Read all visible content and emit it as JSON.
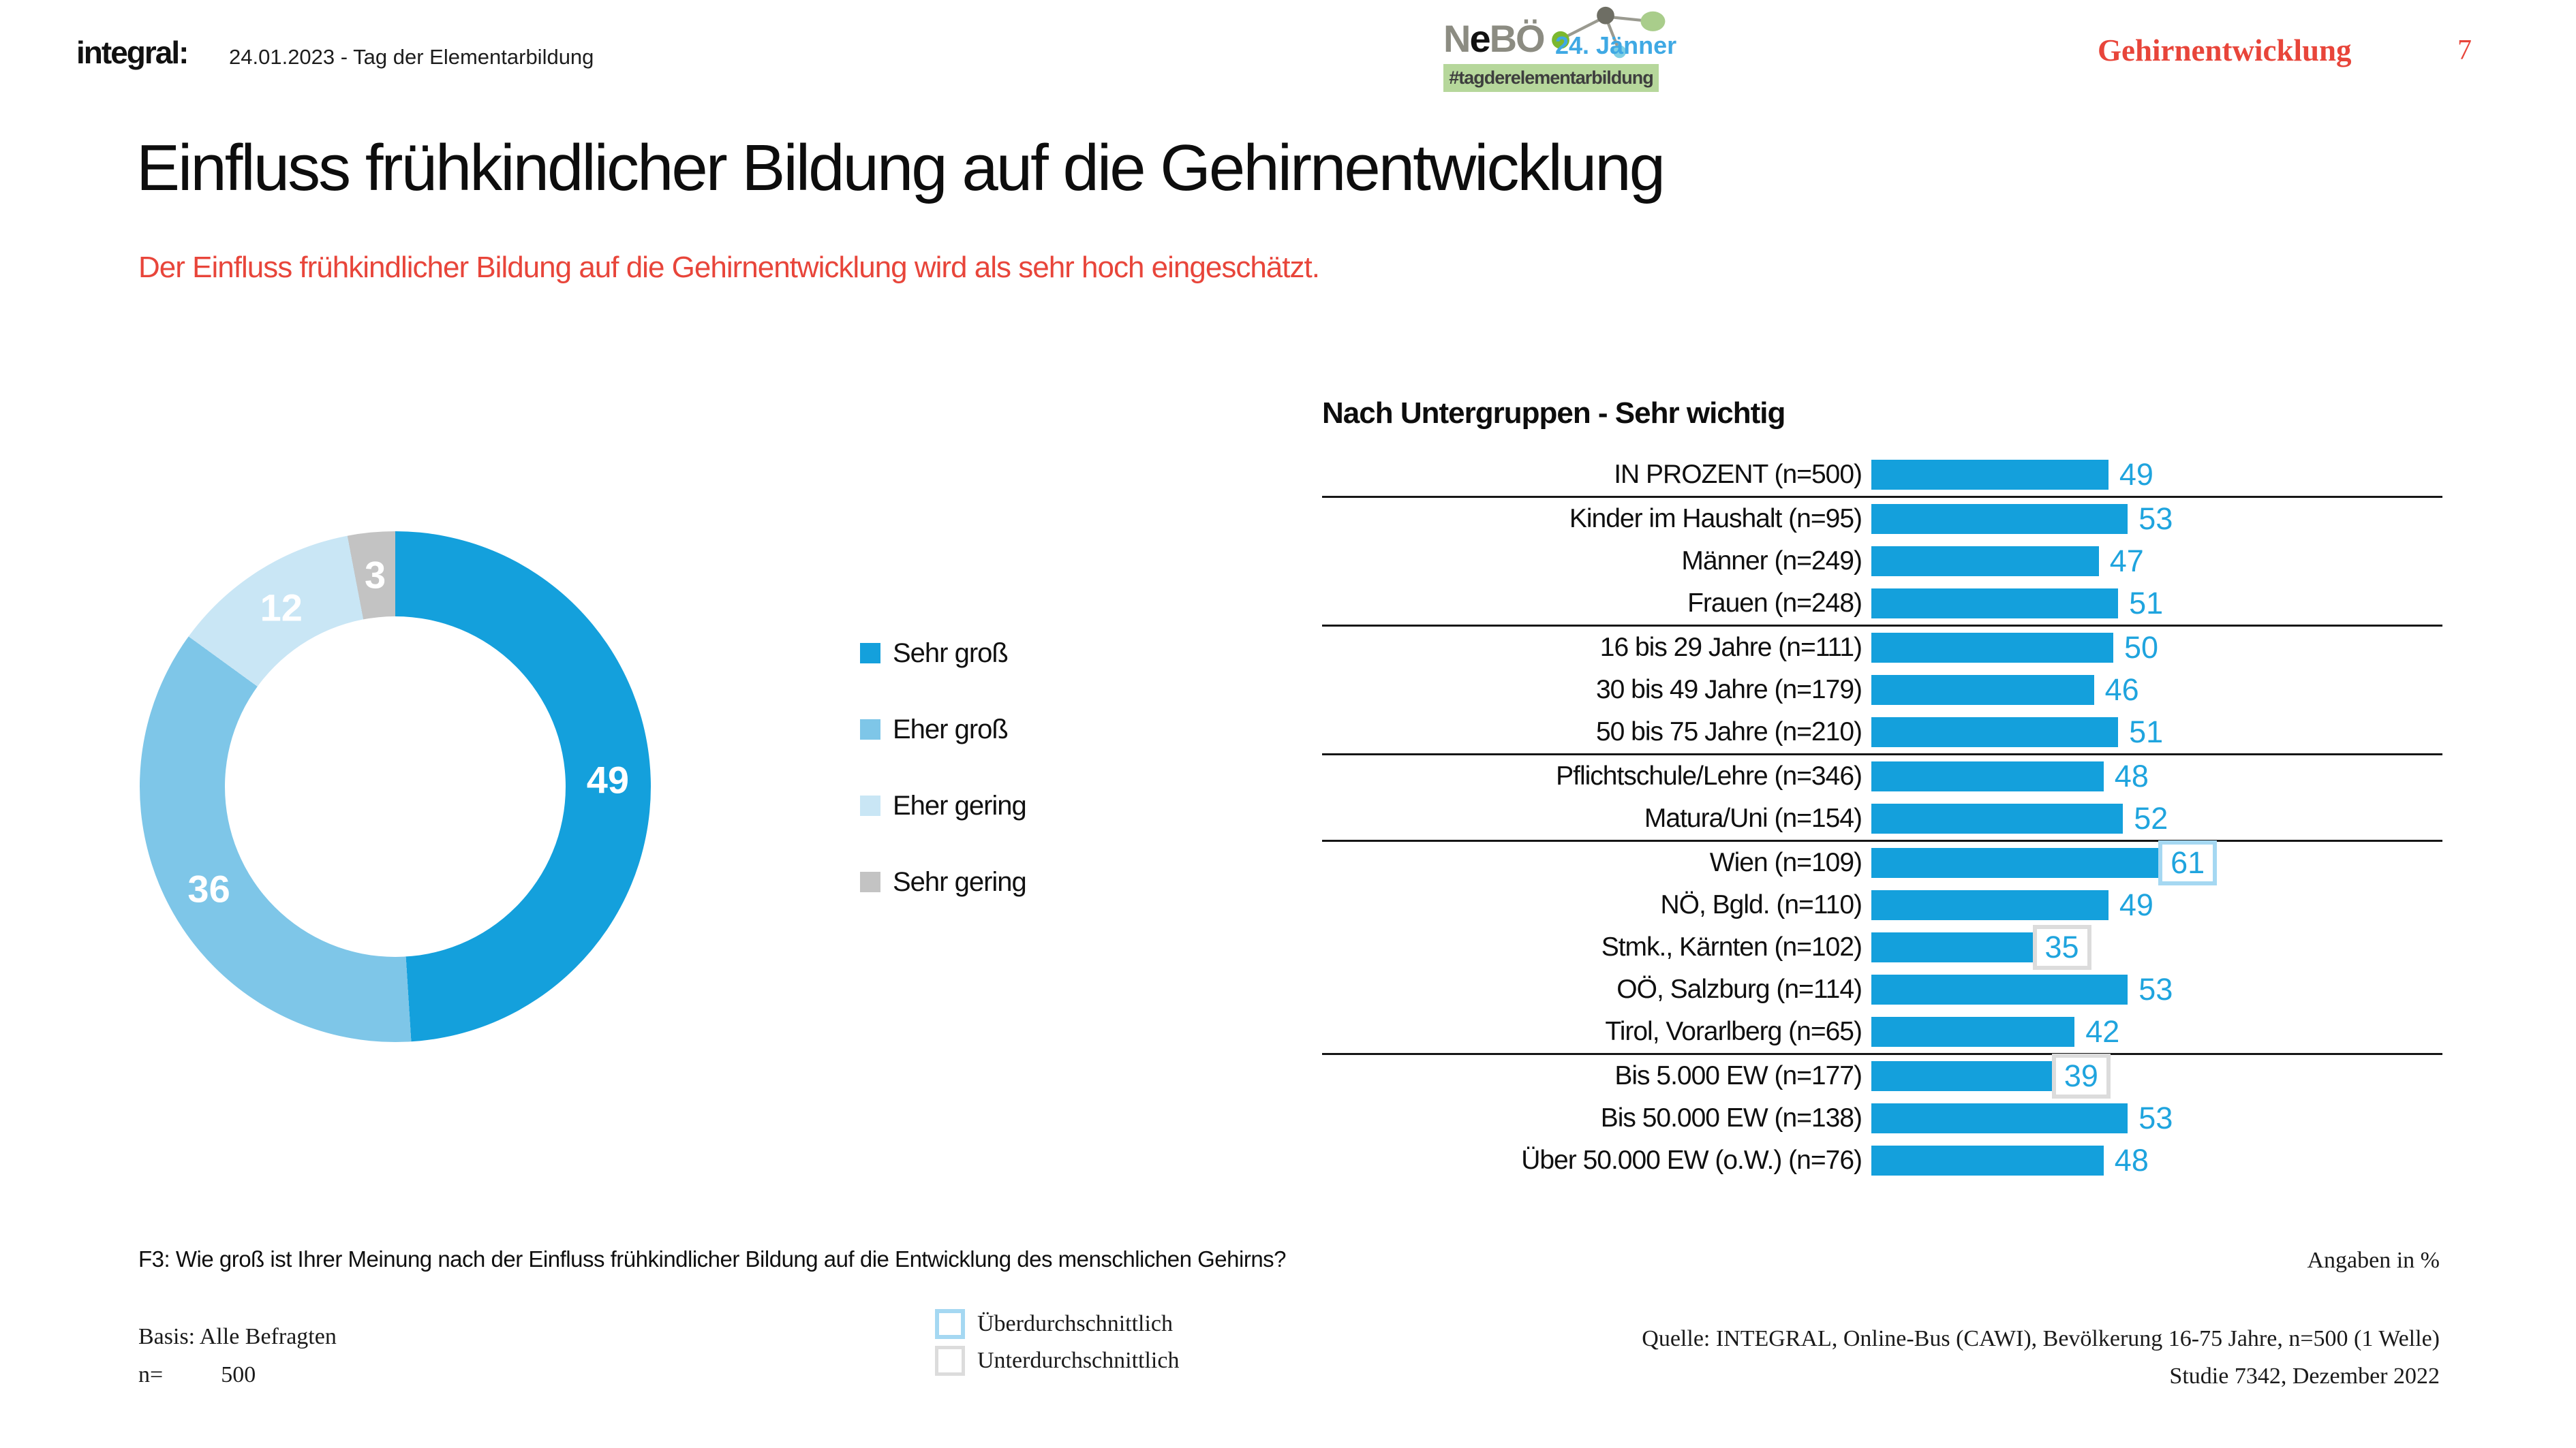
{
  "header": {
    "logo_text": "integral:",
    "date_line": "24.01.2023 - Tag der Elementarbildung",
    "nebo_logo": {
      "name_pre": "N",
      "name_e": "e",
      "name_post": "BÖ",
      "date": "24. Jänner",
      "hashtag": "#tagderelementarbildung"
    },
    "section_title": "Gehirnentwicklung",
    "page_number": "7"
  },
  "title": "Einfluss frühkindlicher Bildung auf die Gehirnentwicklung",
  "subtitle": "Der Einfluss frühkindlicher Bildung auf die Gehirnentwicklung wird als sehr hoch eingeschätzt.",
  "colors": {
    "primary_blue": "#14A0DC",
    "medium_blue": "#7EC6E8",
    "light_blue": "#C9E6F5",
    "gray": "#C3C3C3",
    "value_blue": "#1FA4DE",
    "accent_red": "#E8453A",
    "above_box_border": "#A5D8F2",
    "below_box_border": "#DCDCDC"
  },
  "chart_data": [
    {
      "type": "pie",
      "subtype": "donut",
      "unit": "%",
      "labels": [
        "Sehr groß",
        "Eher groß",
        "Eher gering",
        "Sehr gering"
      ],
      "values": [
        49,
        36,
        12,
        3
      ],
      "colors": [
        "#14A0DC",
        "#7EC6E8",
        "#C9E6F5",
        "#C3C3C3"
      ],
      "start_angle_deg": 0,
      "direction": "clockwise",
      "legend_position": "right"
    },
    {
      "type": "bar",
      "orientation": "horizontal",
      "title": "Nach Untergruppen - Sehr wichtig",
      "unit": "%",
      "xlim": [
        0,
        100
      ],
      "categories": [
        "IN PROZENT (n=500)",
        "Kinder im Haushalt (n=95)",
        "Männer (n=249)",
        "Frauen (n=248)",
        "16 bis 29 Jahre (n=111)",
        "30 bis 49 Jahre (n=179)",
        "50 bis 75 Jahre (n=210)",
        "Pflichtschule/Lehre (n=346)",
        "Matura/Uni (n=154)",
        "Wien (n=109)",
        "NÖ, Bgld. (n=110)",
        "Stmk., Kärnten (n=102)",
        "OÖ, Salzburg (n=114)",
        "Tirol, Vorarlberg (n=65)",
        "Bis 5.000 EW (n=177)",
        "Bis 50.000 EW (n=138)",
        "Über 50.000 EW (o.W.) (n=76)"
      ],
      "values": [
        49,
        53,
        47,
        51,
        50,
        46,
        51,
        48,
        52,
        61,
        49,
        35,
        53,
        42,
        39,
        53,
        48
      ],
      "annotations": {
        "above_average_rows": [
          9
        ],
        "below_average_rows": [
          11,
          14
        ]
      },
      "group_breaks_after_rows": [
        0,
        3,
        6,
        8,
        13
      ]
    }
  ],
  "footer": {
    "question": "F3: Wie groß ist Ihrer Meinung nach der Einfluss frühkindlicher Bildung auf die Entwicklung des menschlichen Gehirns?",
    "angaben": "Angaben in %",
    "basis": "Basis: Alle Befragten",
    "n_label": "n=",
    "n_value": "500",
    "above_label": "Überdurchschnittlich",
    "below_label": "Unterdurchschnittlich",
    "source_line1": "Quelle: INTEGRAL, Online-Bus (CAWI), Bevölkerung 16-75 Jahre, n=500 (1 Welle)",
    "source_line2": "Studie 7342, Dezember 2022"
  }
}
